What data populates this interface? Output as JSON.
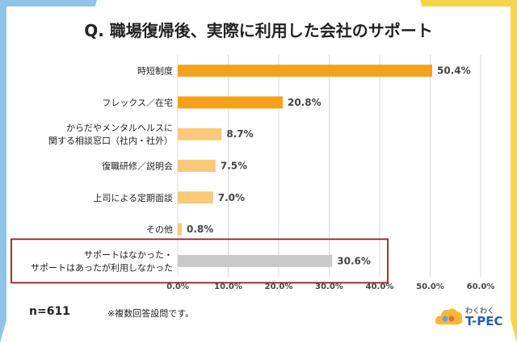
{
  "title": "Q. 職場復帰後、実際に利用した会社のサポート",
  "footer": {
    "n": "n=611",
    "note": "※複数回答設問です。"
  },
  "logo": {
    "top": "わくわく",
    "main": "T-PEC"
  },
  "colors": {
    "bar_strong": "#f5a21b",
    "bar_light": "#fbc97a",
    "bar_gray": "#c9c9c9",
    "highlight_border": "#a01820",
    "bg_left": "#8fc3e8",
    "bg_right": "#f7d54a"
  },
  "chart_data": {
    "type": "bar",
    "orientation": "horizontal",
    "categories": [
      [
        "時短制度"
      ],
      [
        "フレックス／在宅"
      ],
      [
        "からだやメンタルヘルスに",
        "関する相談窓口（社内・社外）"
      ],
      [
        "復職研修／説明会"
      ],
      [
        "上司による定期面談"
      ],
      [
        "その他"
      ],
      [
        "サポートはなかった・",
        "サポートはあったが利用しなかった"
      ]
    ],
    "values": [
      50.4,
      20.8,
      8.7,
      7.5,
      7.0,
      0.8,
      30.6
    ],
    "value_labels": [
      "50.4%",
      "20.8%",
      "8.7%",
      "7.5%",
      "7.0%",
      "0.8%",
      "30.6%"
    ],
    "bar_colors": [
      "#f5a21b",
      "#f5a21b",
      "#fbc97a",
      "#fbc97a",
      "#fbc97a",
      "#fbc97a",
      "#c9c9c9"
    ],
    "highlight_index": 6,
    "xlim": [
      0,
      60
    ],
    "xticks": [
      0,
      10,
      20,
      30,
      40,
      50,
      60
    ],
    "xtick_labels": [
      "0.0%",
      "10.0%",
      "20.0%",
      "30.0%",
      "40.0%",
      "50.0%",
      "60.0%"
    ],
    "grid": true
  }
}
